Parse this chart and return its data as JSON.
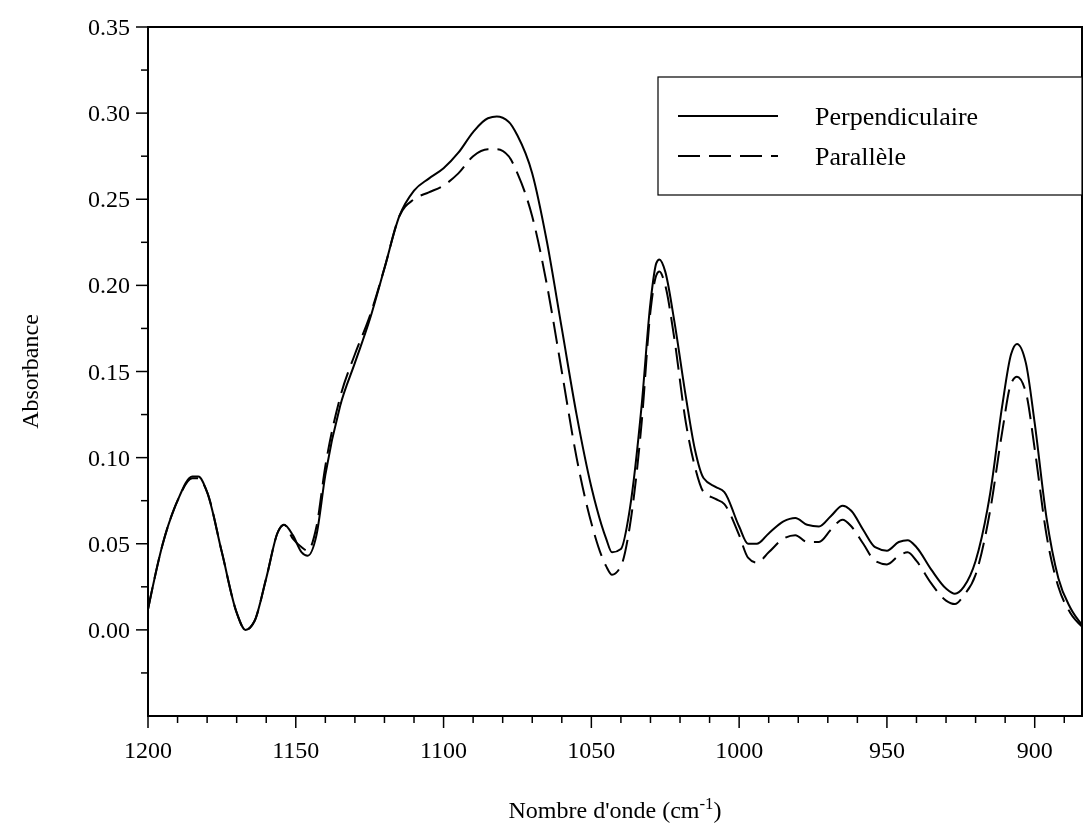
{
  "chart_data": {
    "type": "line",
    "xlabel": "Nombre d'onde (cm$^{-1}$)",
    "ylabel": "Absorbance",
    "xlim": [
      1200,
      884
    ],
    "ylim": [
      -0.05,
      0.35
    ],
    "xticks": [
      1200,
      {
        "value": 1190,
        "label": null
      },
      {
        "value": 1180,
        "label": null
      },
      {
        "value": 1170,
        "label": null
      },
      {
        "value": 1160,
        "label": null
      },
      1150,
      {
        "value": 1140,
        "label": null
      },
      {
        "value": 1130,
        "label": null
      },
      {
        "value": 1120,
        "label": null
      },
      {
        "value": 1110,
        "label": null
      },
      1100,
      {
        "value": 1090,
        "label": null
      },
      {
        "value": 1080,
        "label": null
      },
      {
        "value": 1070,
        "label": null
      },
      {
        "value": 1060,
        "label": null
      },
      1050,
      {
        "value": 1040,
        "label": null
      },
      {
        "value": 1030,
        "label": null
      },
      {
        "value": 1020,
        "label": null
      },
      {
        "value": 1010,
        "label": null
      },
      1000,
      {
        "value": 990,
        "label": null
      },
      {
        "value": 980,
        "label": null
      },
      {
        "value": 970,
        "label": null
      },
      {
        "value": 960,
        "label": null
      },
      950,
      {
        "value": 940,
        "label": null
      },
      {
        "value": 930,
        "label": null
      },
      {
        "value": 920,
        "label": null
      },
      {
        "value": 910,
        "label": null
      },
      900,
      {
        "value": 890,
        "label": null
      }
    ],
    "yticks": [
      {
        "value": -0.025,
        "label": null
      },
      {
        "value": 0,
        "label": "0.00"
      },
      {
        "value": 0.025,
        "label": null
      },
      {
        "value": 0.05,
        "label": "0.05"
      },
      {
        "value": 0.075,
        "label": null
      },
      {
        "value": 0.1,
        "label": "0.10"
      },
      {
        "value": 0.125,
        "label": null
      },
      {
        "value": 0.15,
        "label": "0.15"
      },
      {
        "value": 0.175,
        "label": null
      },
      {
        "value": 0.2,
        "label": "0.20"
      },
      {
        "value": 0.225,
        "label": null
      },
      {
        "value": 0.25,
        "label": "0.25"
      },
      {
        "value": 0.275,
        "label": null
      },
      {
        "value": 0.3,
        "label": "0.30"
      },
      {
        "value": 0.325,
        "label": null
      },
      {
        "value": 0.35,
        "label": "0.35"
      }
    ],
    "grid": false,
    "legend": "top right",
    "series": [
      {
        "name": "Perpendiculaire",
        "color": "#000000",
        "line_style": "solid",
        "x": [
          1200,
          1195,
          1190,
          1185,
          1183,
          1180,
          1175,
          1170,
          1167,
          1164,
          1160,
          1156,
          1154,
          1151,
          1148,
          1146,
          1143,
          1140,
          1135,
          1130,
          1125,
          1120,
          1115,
          1110,
          1105,
          1100,
          1095,
          1090,
          1085,
          1082,
          1078,
          1075,
          1070,
          1065,
          1060,
          1055,
          1050,
          1045,
          1043,
          1040,
          1037,
          1033,
          1030,
          1028,
          1027,
          1025,
          1022,
          1018,
          1015,
          1012,
          1008,
          1005,
          1000,
          997,
          994,
          990,
          985,
          981,
          977,
          973,
          969,
          965,
          962,
          958,
          954,
          950,
          946,
          943,
          940,
          935,
          930,
          927,
          924,
          920,
          915,
          911,
          908,
          906,
          903,
          900,
          896,
          892,
          888,
          884
        ],
        "values": [
          0.012,
          0.05,
          0.075,
          0.089,
          0.089,
          0.08,
          0.045,
          0.01,
          0.0,
          0.005,
          0.03,
          0.057,
          0.061,
          0.055,
          0.045,
          0.043,
          0.055,
          0.09,
          0.13,
          0.155,
          0.18,
          0.21,
          0.24,
          0.255,
          0.262,
          0.268,
          0.277,
          0.289,
          0.297,
          0.298,
          0.295,
          0.287,
          0.265,
          0.225,
          0.175,
          0.125,
          0.083,
          0.053,
          0.045,
          0.047,
          0.07,
          0.13,
          0.19,
          0.213,
          0.215,
          0.208,
          0.18,
          0.135,
          0.105,
          0.088,
          0.083,
          0.08,
          0.06,
          0.05,
          0.05,
          0.056,
          0.063,
          0.065,
          0.061,
          0.06,
          0.066,
          0.072,
          0.069,
          0.058,
          0.048,
          0.046,
          0.051,
          0.052,
          0.048,
          0.035,
          0.024,
          0.021,
          0.025,
          0.04,
          0.08,
          0.13,
          0.16,
          0.166,
          0.155,
          0.12,
          0.065,
          0.03,
          0.013,
          0.003
        ]
      },
      {
        "name": "Parallèle",
        "color": "#000000",
        "line_style": "dashed",
        "x": [
          1200,
          1195,
          1190,
          1185,
          1183,
          1180,
          1175,
          1170,
          1167,
          1164,
          1160,
          1156,
          1154,
          1151,
          1148,
          1146,
          1143,
          1140,
          1135,
          1130,
          1125,
          1120,
          1115,
          1110,
          1105,
          1100,
          1095,
          1090,
          1085,
          1082,
          1078,
          1075,
          1070,
          1065,
          1060,
          1055,
          1050,
          1045,
          1043,
          1040,
          1037,
          1033,
          1030,
          1028,
          1027,
          1025,
          1022,
          1018,
          1015,
          1012,
          1008,
          1005,
          1000,
          997,
          994,
          990,
          985,
          981,
          977,
          973,
          969,
          965,
          962,
          958,
          954,
          950,
          946,
          943,
          940,
          935,
          930,
          927,
          924,
          920,
          915,
          911,
          908,
          906,
          903,
          900,
          896,
          892,
          888,
          884
        ],
        "values": [
          0.012,
          0.05,
          0.075,
          0.088,
          0.088,
          0.08,
          0.045,
          0.01,
          0.0,
          0.005,
          0.03,
          0.057,
          0.061,
          0.053,
          0.048,
          0.046,
          0.06,
          0.095,
          0.135,
          0.16,
          0.182,
          0.21,
          0.24,
          0.25,
          0.254,
          0.258,
          0.265,
          0.275,
          0.279,
          0.279,
          0.275,
          0.265,
          0.24,
          0.2,
          0.15,
          0.1,
          0.062,
          0.037,
          0.032,
          0.037,
          0.06,
          0.12,
          0.185,
          0.206,
          0.208,
          0.2,
          0.17,
          0.12,
          0.095,
          0.08,
          0.076,
          0.073,
          0.055,
          0.042,
          0.039,
          0.045,
          0.053,
          0.055,
          0.051,
          0.051,
          0.058,
          0.064,
          0.06,
          0.05,
          0.04,
          0.038,
          0.043,
          0.045,
          0.04,
          0.027,
          0.017,
          0.015,
          0.02,
          0.032,
          0.07,
          0.115,
          0.143,
          0.147,
          0.138,
          0.105,
          0.055,
          0.025,
          0.01,
          0.002
        ]
      }
    ]
  }
}
